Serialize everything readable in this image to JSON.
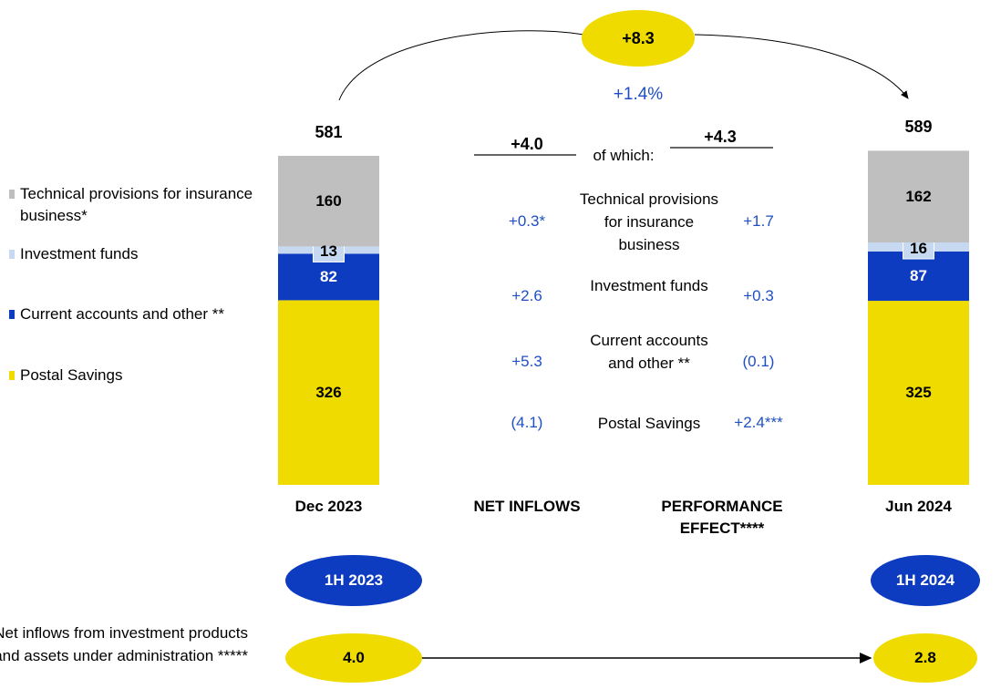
{
  "chart_data": {
    "type": "stacked_bar",
    "categories": [
      "Dec 2023",
      "Jun 2024"
    ],
    "series": [
      {
        "name": "Postal Savings",
        "color": "#efdb00",
        "values": [
          326,
          325
        ]
      },
      {
        "name": "Current accounts and other **",
        "color": "#0d3cc0",
        "values": [
          82,
          87
        ]
      },
      {
        "name": "Investment funds",
        "color": "#c6d9f1",
        "values": [
          13,
          16
        ]
      },
      {
        "name": "Technical provisions for insurance business*",
        "color": "#bfbfbf",
        "values": [
          160,
          162
        ]
      }
    ],
    "totals": [
      581,
      589
    ]
  },
  "change": {
    "value": "+8.3",
    "percent": "+1.4%"
  },
  "bridge": {
    "net_inflows": {
      "label": "NET INFLOWS",
      "total": "+4.0"
    },
    "performance": {
      "label": "PERFORMANCE EFFECT****",
      "total": "+4.3"
    },
    "of_which": "of which:",
    "rows": [
      {
        "name": "Technical provisions for insurance business",
        "net": "+0.3*",
        "perf": "+1.7"
      },
      {
        "name": "Investment funds",
        "net": "+2.6",
        "perf": "+0.3"
      },
      {
        "name": "Current accounts and other **",
        "net": "+5.3",
        "perf": "(0.1)"
      },
      {
        "name": "Postal Savings",
        "net": "(4.1)",
        "perf": "+2.4***"
      }
    ]
  },
  "periods": [
    "1H 2023",
    "1H 2024"
  ],
  "net_inflows_products": {
    "label": "Net inflows from investment products and assets under administration *****",
    "values": [
      "4.0",
      "2.8"
    ]
  }
}
